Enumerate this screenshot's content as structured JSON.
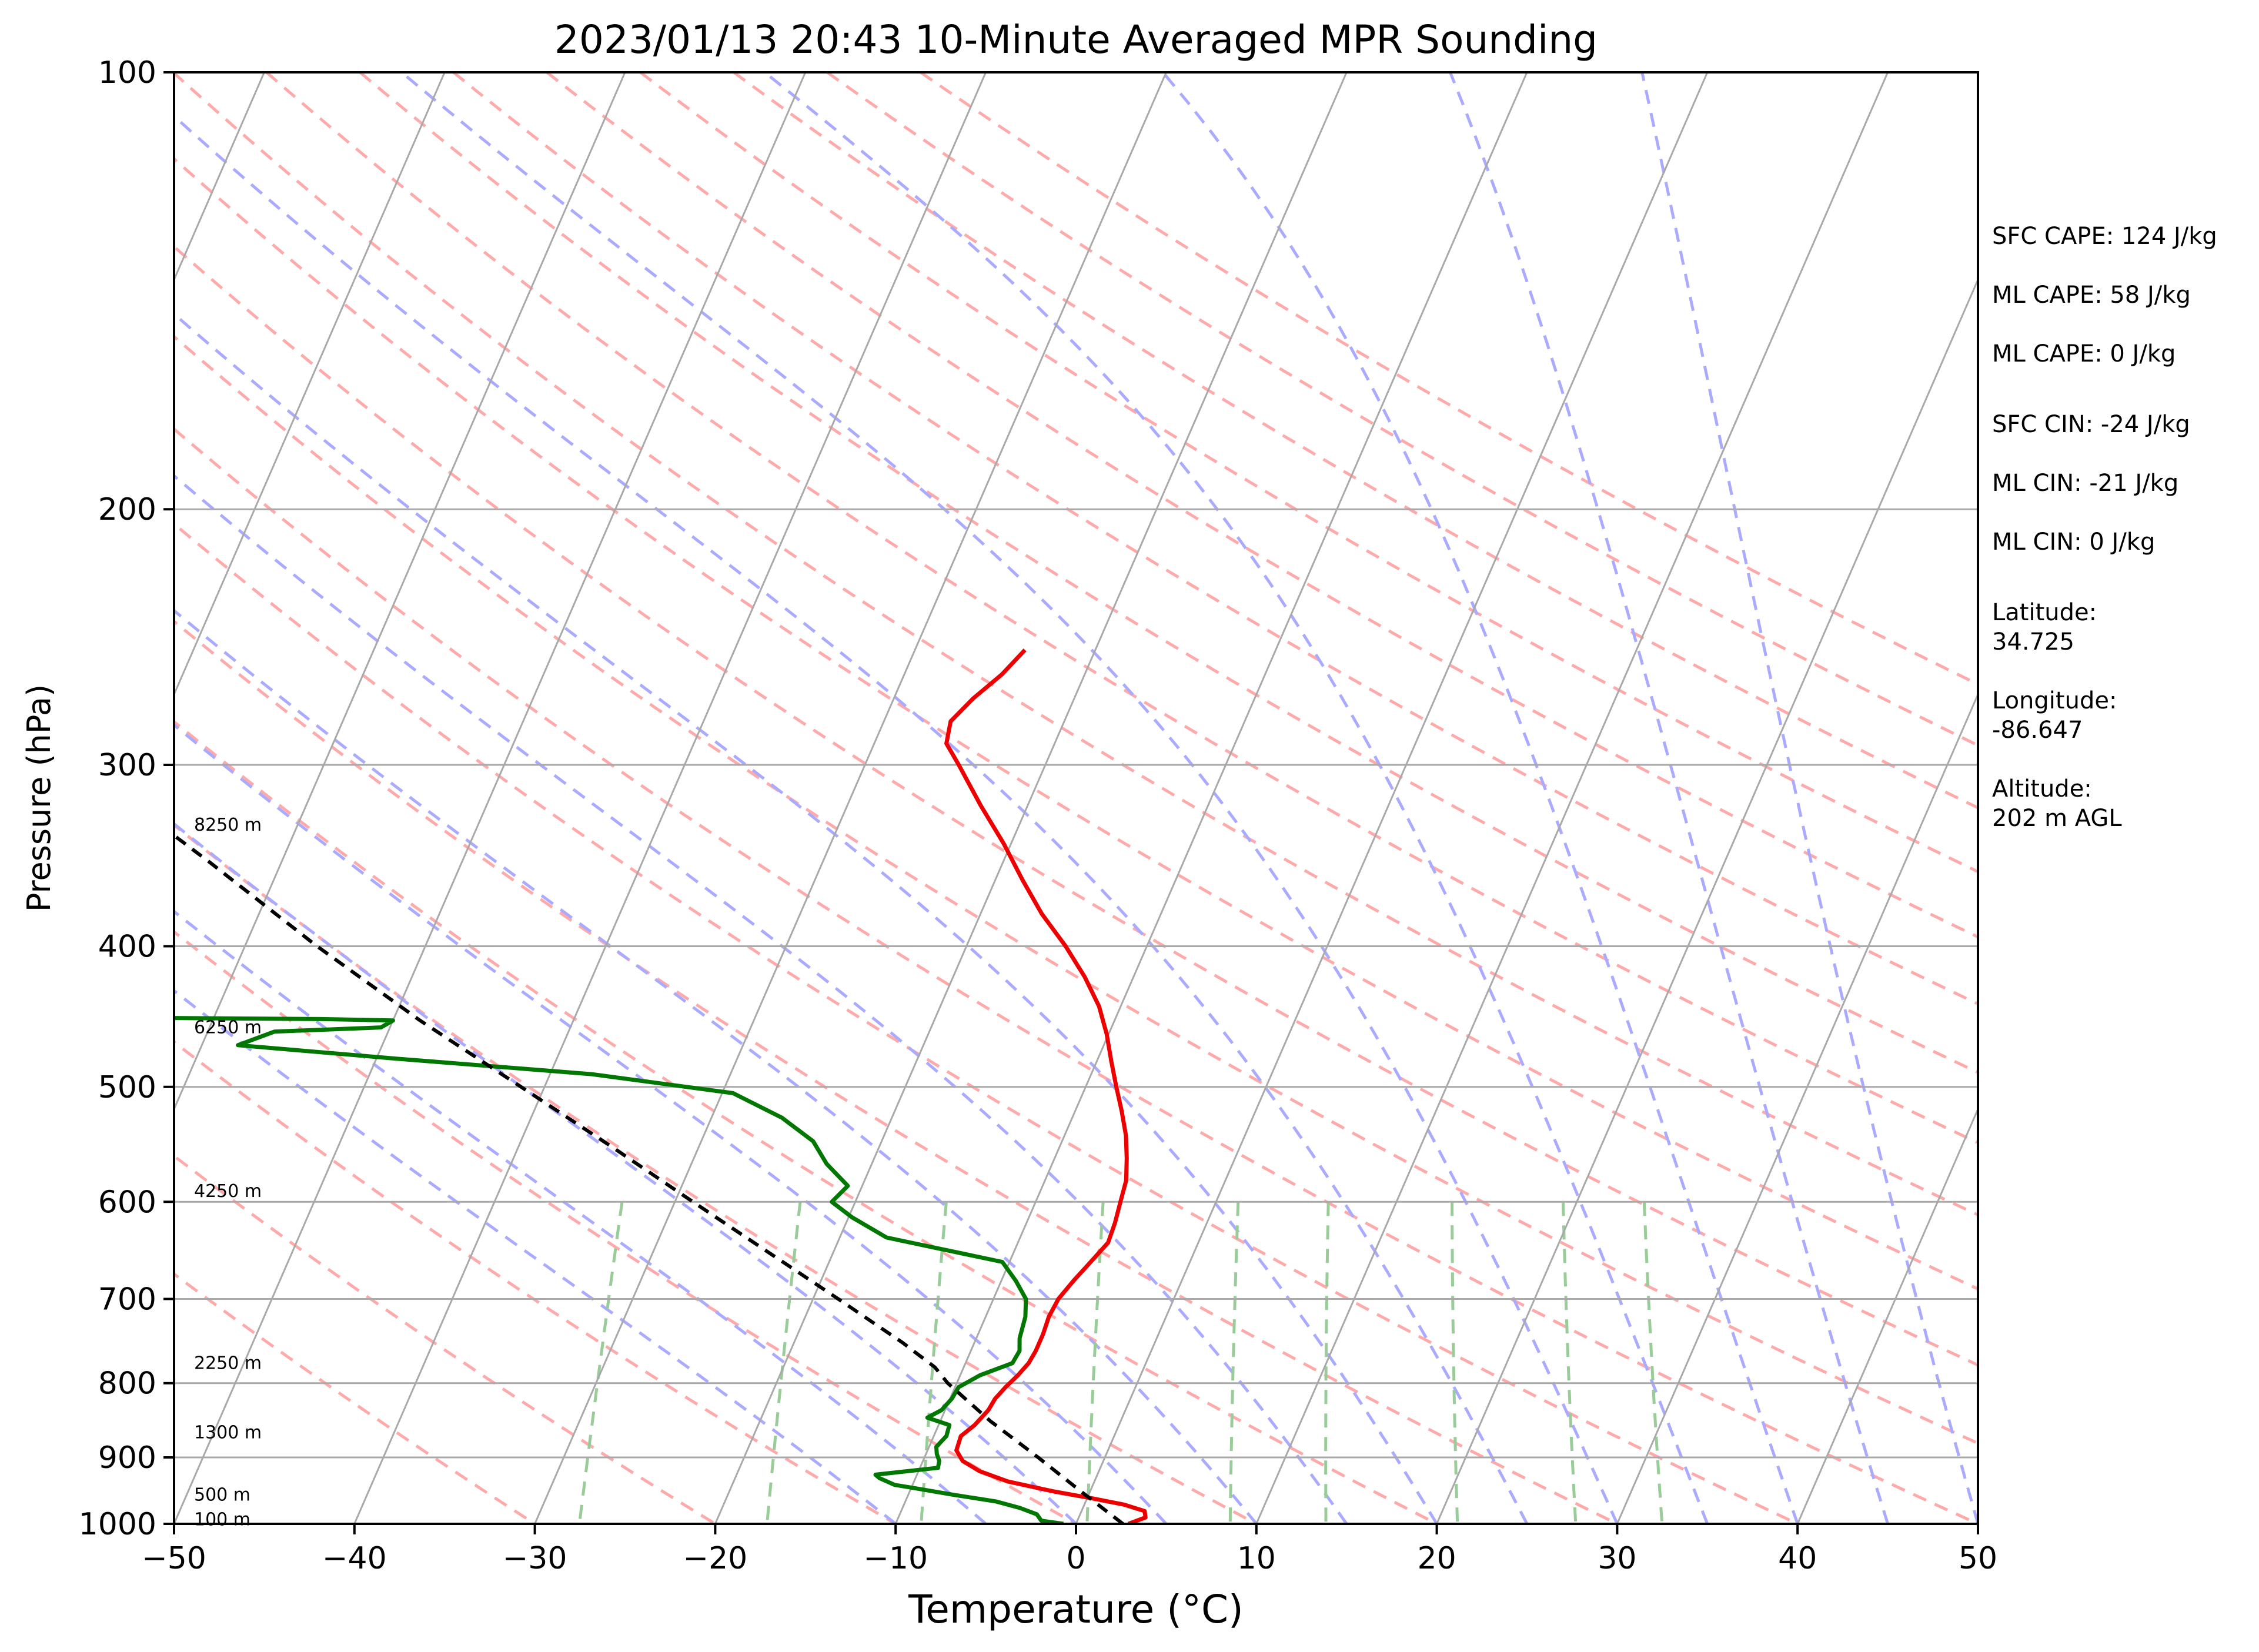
{
  "chart_data": {
    "type": "line",
    "title": "2023/01/13 20:43 10-Minute Averaged MPR Sounding",
    "xlabel": "Temperature (°C)",
    "ylabel": "Pressure (hPa)",
    "xlim": [
      -50,
      50
    ],
    "ylim": [
      1000,
      100
    ],
    "y_scale": "log",
    "skew": "skew-T log-p",
    "grid": true,
    "x_ticks": [
      "−50",
      "−40",
      "−30",
      "−20",
      "−10",
      "0",
      "10",
      "20",
      "30",
      "40",
      "50"
    ],
    "x_tick_values": [
      -50,
      -40,
      -30,
      -20,
      -10,
      0,
      10,
      20,
      30,
      40,
      50
    ],
    "y_ticks": [
      "100",
      "200",
      "300",
      "400",
      "500",
      "600",
      "700",
      "800",
      "900",
      "1000"
    ],
    "y_tick_values": [
      100,
      200,
      300,
      400,
      500,
      600,
      700,
      800,
      900,
      1000
    ],
    "height_labels": [
      {
        "p": 993,
        "text": "100 m"
      },
      {
        "p": 955,
        "text": "500 m"
      },
      {
        "p": 865,
        "text": "1300 m"
      },
      {
        "p": 775,
        "text": "2250 m"
      },
      {
        "p": 590,
        "text": "4250 m"
      },
      {
        "p": 455,
        "text": "6250 m"
      },
      {
        "p": 330,
        "text": "8250 m"
      }
    ],
    "series": [
      {
        "name": "",
        "role": "temperature",
        "color": "#ee0000",
        "points": [
          [
            1000,
            2.9
          ],
          [
            990,
            3.7
          ],
          [
            980,
            3.5
          ],
          [
            970,
            2.2
          ],
          [
            960,
            0.2
          ],
          [
            950,
            -2.0
          ],
          [
            935,
            -4.8
          ],
          [
            920,
            -6.6
          ],
          [
            905,
            -7.8
          ],
          [
            890,
            -8.4
          ],
          [
            870,
            -8.5
          ],
          [
            855,
            -8.0
          ],
          [
            835,
            -7.6
          ],
          [
            820,
            -7.5
          ],
          [
            805,
            -7.2
          ],
          [
            790,
            -6.8
          ],
          [
            775,
            -6.5
          ],
          [
            760,
            -6.4
          ],
          [
            740,
            -6.4
          ],
          [
            720,
            -6.5
          ],
          [
            700,
            -6.4
          ],
          [
            680,
            -6.0
          ],
          [
            660,
            -5.5
          ],
          [
            640,
            -5.0
          ],
          [
            620,
            -5.1
          ],
          [
            600,
            -5.3
          ],
          [
            580,
            -5.5
          ],
          [
            560,
            -6.0
          ],
          [
            540,
            -6.6
          ],
          [
            520,
            -7.4
          ],
          [
            500,
            -8.3
          ],
          [
            480,
            -9.2
          ],
          [
            460,
            -10.1
          ],
          [
            440,
            -11.2
          ],
          [
            420,
            -12.7
          ],
          [
            400,
            -14.5
          ],
          [
            380,
            -16.6
          ],
          [
            360,
            -18.5
          ],
          [
            340,
            -20.4
          ],
          [
            320,
            -22.6
          ],
          [
            300,
            -24.8
          ],
          [
            290,
            -26.0
          ],
          [
            280,
            -26.3
          ],
          [
            270,
            -25.6
          ],
          [
            260,
            -24.6
          ],
          [
            250,
            -23.9
          ]
        ]
      },
      {
        "name": "",
        "role": "dewpoint",
        "color": "#007700",
        "points": [
          [
            1000,
            -0.7
          ],
          [
            995,
            -2.0
          ],
          [
            985,
            -2.4
          ],
          [
            975,
            -3.5
          ],
          [
            965,
            -5.0
          ],
          [
            955,
            -7.5
          ],
          [
            945,
            -9.8
          ],
          [
            940,
            -11.0
          ],
          [
            930,
            -12.0
          ],
          [
            925,
            -12.3
          ],
          [
            915,
            -9.0
          ],
          [
            905,
            -9.1
          ],
          [
            895,
            -9.4
          ],
          [
            885,
            -9.6
          ],
          [
            870,
            -9.3
          ],
          [
            855,
            -9.4
          ],
          [
            845,
            -10.8
          ],
          [
            835,
            -10.2
          ],
          [
            820,
            -9.9
          ],
          [
            805,
            -9.8
          ],
          [
            790,
            -8.9
          ],
          [
            775,
            -7.4
          ],
          [
            760,
            -7.3
          ],
          [
            745,
            -7.6
          ],
          [
            720,
            -7.8
          ],
          [
            700,
            -8.2
          ],
          [
            680,
            -9.2
          ],
          [
            660,
            -10.4
          ],
          [
            635,
            -17.4
          ],
          [
            615,
            -19.8
          ],
          [
            600,
            -21.3
          ],
          [
            585,
            -20.8
          ],
          [
            565,
            -22.5
          ],
          [
            545,
            -23.8
          ],
          [
            525,
            -26.1
          ],
          [
            505,
            -29.4
          ],
          [
            490,
            -37.7
          ],
          [
            478,
            -49.0
          ],
          [
            468,
            -58.0
          ],
          [
            458,
            -56.3
          ],
          [
            455,
            -50.5
          ],
          [
            450,
            -50.0
          ],
          [
            449,
            -54.0
          ],
          [
            448,
            -65.0
          ]
        ]
      },
      {
        "name": "",
        "role": "parcel",
        "color": "#000000",
        "dashed": true,
        "points": [
          [
            1000,
            2.6
          ],
          [
            950,
            -0.5
          ],
          [
            900,
            -3.7
          ],
          [
            850,
            -7.2
          ],
          [
            800,
            -10.5
          ],
          [
            780,
            -11.6
          ],
          [
            750,
            -14.0
          ],
          [
            700,
            -18.6
          ],
          [
            650,
            -23.6
          ],
          [
            600,
            -29.0
          ],
          [
            550,
            -34.8
          ],
          [
            500,
            -41.3
          ],
          [
            450,
            -48.5
          ],
          [
            400,
            -56.0
          ],
          [
            350,
            -64.0
          ],
          [
            300,
            -73.5
          ],
          [
            270,
            -80.0
          ]
        ]
      }
    ],
    "annotations": [
      "SFC CAPE: 124 J/kg",
      "ML CAPE: 58 J/kg",
      "ML CAPE: 0 J/kg",
      "SFC CIN: -24 J/kg",
      "ML CIN: -21 J/kg",
      "ML CIN: 0 J/kg",
      "Latitude:",
      "34.725",
      "Longitude:",
      "-86.647",
      "Altitude:",
      "202 m AGL"
    ],
    "reference_lines": {
      "isobars": [
        100,
        200,
        300,
        400,
        500,
        600,
        700,
        800,
        900,
        1000
      ],
      "isotherms": [
        -150,
        -140,
        -130,
        -120,
        -110,
        -100,
        -90,
        -80,
        -70,
        -60,
        -50,
        -40,
        -30,
        -20,
        -10,
        0,
        10,
        20,
        30,
        40,
        50
      ],
      "dry_adiabats_theta_c": [
        -30,
        -20,
        -10,
        0,
        10,
        20,
        30,
        40,
        50,
        60,
        70,
        80,
        90,
        100,
        110,
        120,
        130,
        140,
        150,
        160,
        170
      ],
      "moist_adiabats_t1000": [
        -10,
        -5,
        0,
        5,
        10,
        15,
        20,
        25,
        30,
        35,
        40,
        45,
        50
      ],
      "mixing_ratios_g_kg": [
        0.4,
        1,
        2,
        4,
        7,
        10,
        16,
        24,
        32
      ],
      "colors": {
        "isotherm": "#a9a9a9",
        "isobar": "#a9a9a9",
        "dry_adiabat": "#ffaaaa",
        "moist_adiabat": "#aaaaff",
        "mixing_ratio": "#99cc99"
      }
    }
  }
}
